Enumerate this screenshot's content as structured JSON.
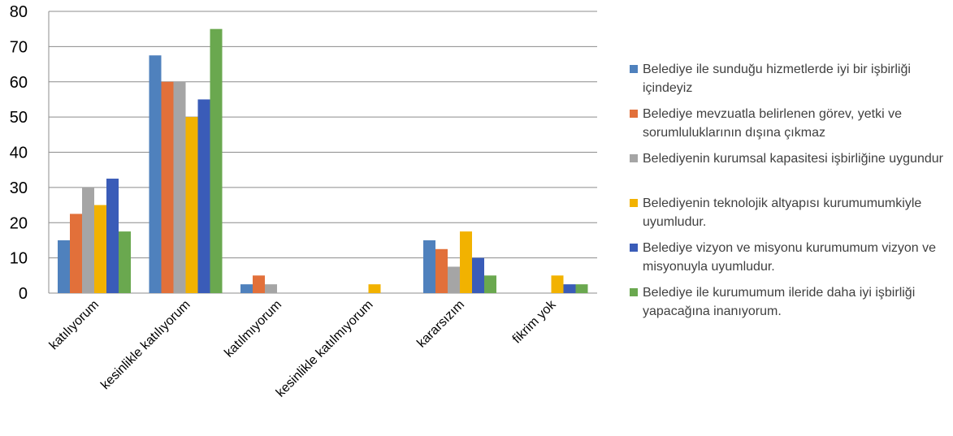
{
  "chart_data": {
    "type": "bar",
    "title": "",
    "xlabel": "",
    "ylabel": "",
    "ylim": [
      0,
      80
    ],
    "yticks": [
      0,
      10,
      20,
      30,
      40,
      50,
      60,
      70,
      80
    ],
    "grid": true,
    "legend_position": "right",
    "categories": [
      "katılıyorum",
      "kesinlikle katılıyorum",
      "katılmıyorum",
      "kesinlikle katılmıyorum",
      "kararsızım",
      "fikrim yok"
    ],
    "series": [
      {
        "name": "Belediye ile sunduğu hizmetlerde iyi bir işbirliği içindeyiz",
        "color": "#4F81BD",
        "values": [
          15,
          67.5,
          2.5,
          0,
          15,
          0
        ]
      },
      {
        "name": "Belediye mevzuatla belirlenen görev, yetki ve sorumluluklarının dışına çıkmaz",
        "color": "#E2703A",
        "values": [
          22.5,
          60,
          5,
          0,
          12.5,
          0
        ]
      },
      {
        "name": "Belediyenin kurumsal kapasitesi işbirliğine uygundur",
        "color": "#A5A5A5",
        "values": [
          30,
          60,
          2.5,
          0,
          7.5,
          0
        ]
      },
      {
        "name": "Belediyenin teknolojik altyapısı kurumumumkiyle uyumludur.",
        "color": "#F2B200",
        "values": [
          25,
          50,
          0,
          2.5,
          17.5,
          5
        ]
      },
      {
        "name": "Belediye vizyon ve misyonu kurumumum vizyon ve misyonuyla uyumludur.",
        "color": "#3A5CB8",
        "values": [
          32.5,
          55,
          0,
          0,
          10,
          2.5
        ]
      },
      {
        "name": "Belediye ile kurumumum ileride daha iyi işbirliği yapacağına inanıyorum.",
        "color": "#6AA84F",
        "values": [
          17.5,
          75,
          0,
          0,
          5,
          2.5
        ]
      }
    ]
  }
}
